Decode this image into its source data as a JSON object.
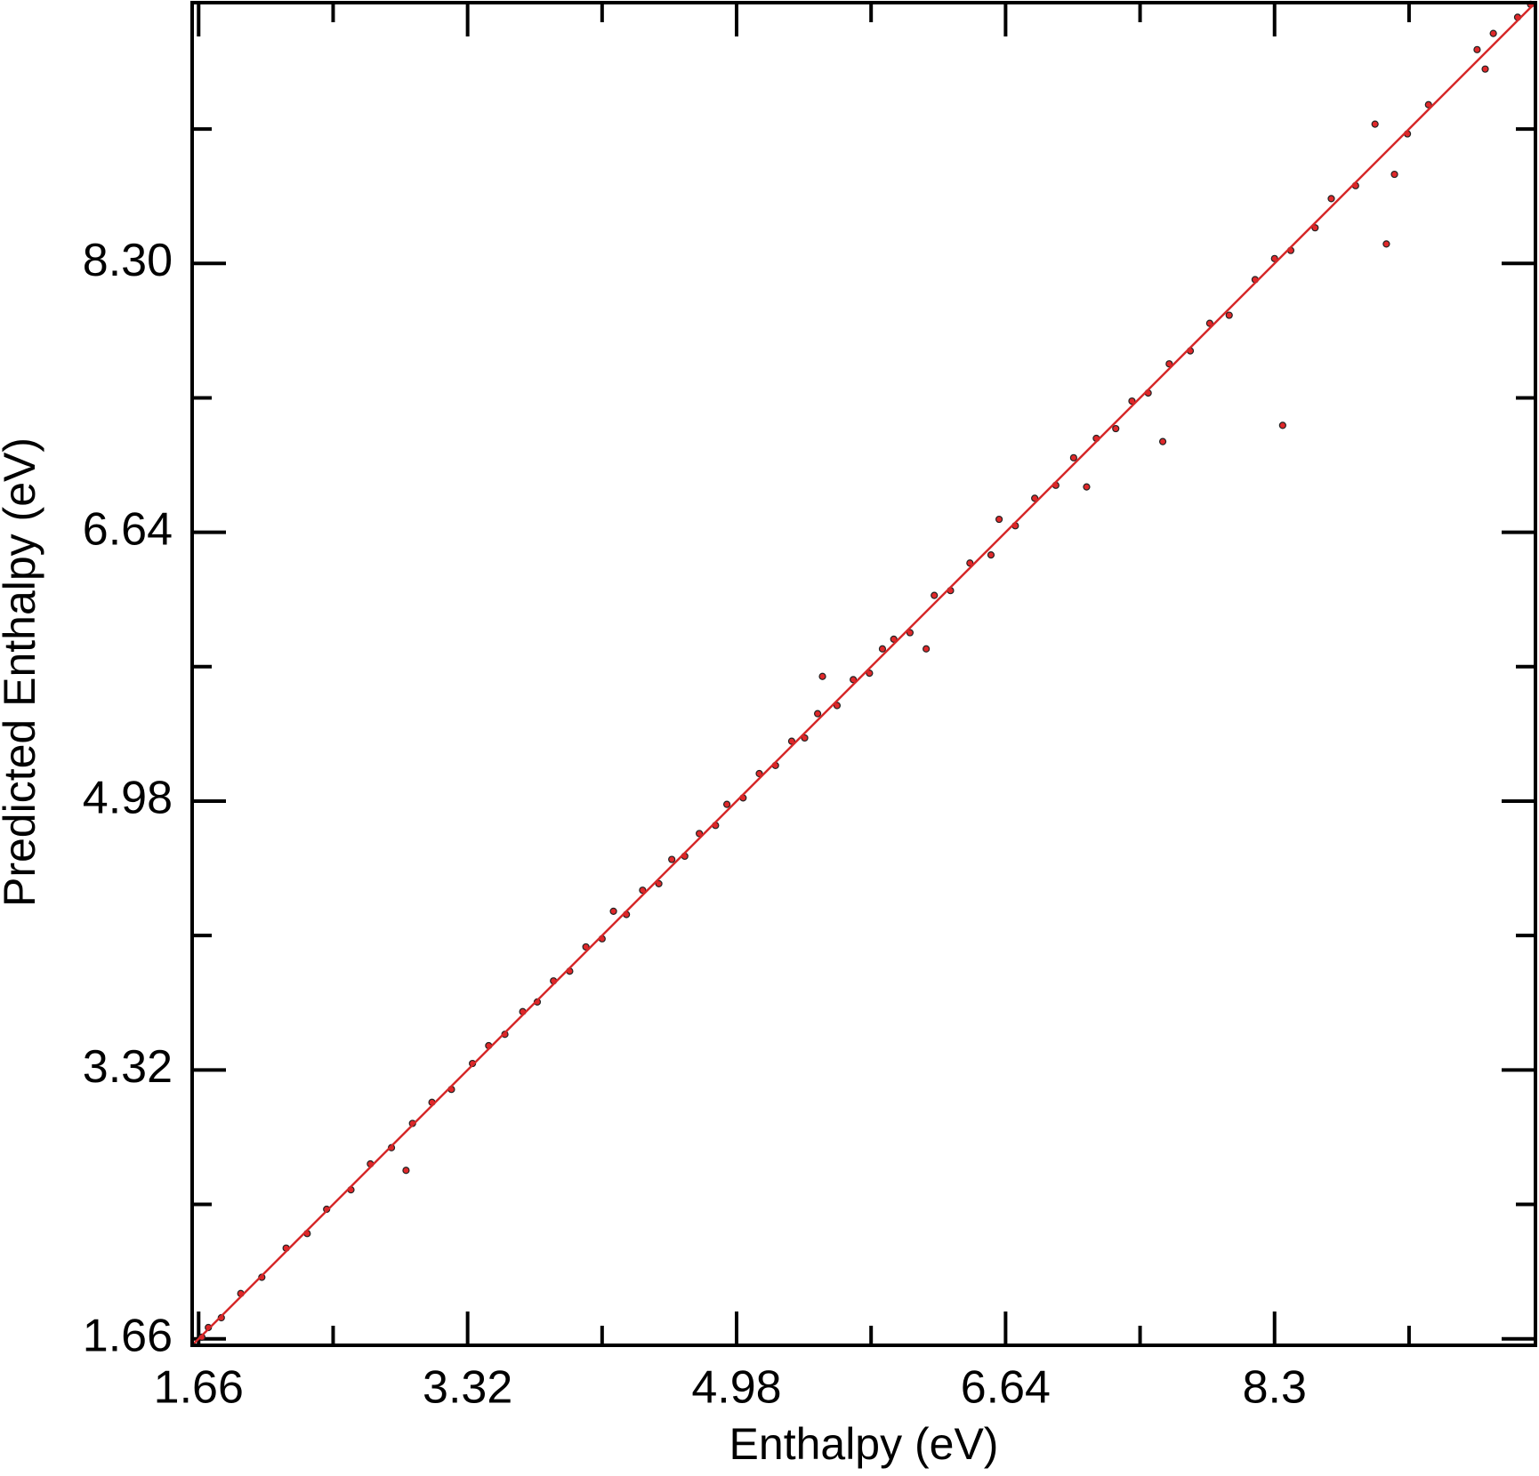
{
  "chart_data": {
    "type": "scatter",
    "x_label": "Enthalpy (eV)",
    "y_label": "Predicted Enthalpy (eV)",
    "xlim": [
      1.62,
      9.91
    ],
    "ylim": [
      1.62,
      9.91
    ],
    "xticks": [
      1.66,
      3.32,
      4.98,
      6.64,
      8.3
    ],
    "yticks": [
      1.66,
      3.32,
      4.98,
      6.64,
      {
        "value": 8.3,
        "label": "8.30"
      }
    ],
    "grid": false,
    "series": [
      {
        "type": "scatter",
        "color": "#e0282a",
        "x": [
          1.68,
          1.72,
          1.8,
          1.92,
          2.05,
          2.2,
          2.33,
          2.45,
          2.6,
          2.72,
          2.85,
          2.94,
          2.98,
          3.1,
          3.22,
          3.35,
          3.45,
          3.55,
          3.66,
          3.75,
          3.85,
          3.95,
          4.05,
          4.15,
          4.22,
          4.3,
          4.4,
          4.5,
          4.58,
          4.66,
          4.75,
          4.85,
          4.92,
          5.02,
          5.12,
          5.22,
          5.32,
          5.4,
          5.48,
          5.51,
          5.6,
          5.7,
          5.8,
          5.88,
          5.95,
          6.05,
          6.15,
          6.2,
          6.3,
          6.42,
          6.55,
          6.6,
          6.7,
          6.82,
          6.95,
          7.06,
          7.14,
          7.2,
          7.32,
          7.42,
          7.52,
          7.61,
          7.65,
          7.78,
          7.9,
          8.02,
          8.18,
          8.3,
          8.35,
          8.4,
          8.55,
          8.65,
          8.8,
          8.92,
          8.99,
          9.04,
          9.12,
          9.25,
          9.55,
          9.6,
          9.65,
          9.8,
          9.88
        ],
        "values": [
          1.67,
          1.73,
          1.79,
          1.94,
          2.04,
          2.22,
          2.31,
          2.46,
          2.58,
          2.74,
          2.84,
          2.7,
          2.99,
          3.12,
          3.2,
          3.36,
          3.47,
          3.54,
          3.68,
          3.74,
          3.87,
          3.93,
          4.08,
          4.13,
          4.3,
          4.28,
          4.43,
          4.47,
          4.62,
          4.64,
          4.78,
          4.83,
          4.96,
          5.0,
          5.15,
          5.2,
          5.35,
          5.37,
          5.52,
          5.75,
          5.57,
          5.73,
          5.77,
          5.92,
          5.98,
          6.02,
          5.92,
          6.25,
          6.28,
          6.45,
          6.5,
          6.72,
          6.68,
          6.85,
          6.93,
          7.1,
          6.92,
          7.22,
          7.28,
          7.45,
          7.5,
          7.2,
          7.68,
          7.76,
          7.93,
          7.98,
          8.2,
          8.33,
          7.3,
          8.38,
          8.52,
          8.7,
          8.78,
          9.16,
          8.42,
          8.85,
          9.1,
          9.28,
          9.62,
          9.5,
          9.72,
          9.82,
          9.9
        ]
      },
      {
        "type": "line",
        "color": "#d62728",
        "x": [
          1.62,
          9.91
        ],
        "values": [
          1.62,
          9.91
        ]
      }
    ]
  }
}
